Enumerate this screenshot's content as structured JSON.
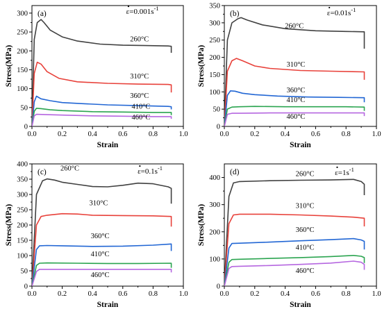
{
  "chart_data": [
    {
      "type": "line",
      "panel_label": "(a)",
      "strain_rate": "ε=0.001s",
      "strain_rate_unit": "-1",
      "xlabel": "Strain",
      "ylabel": "Stress(MPa)",
      "xlim": [
        0,
        1.0
      ],
      "ylim": [
        0,
        320
      ],
      "xticks": [
        "0.0",
        "0.2",
        "0.4",
        "0.6",
        "0.8",
        "1.0"
      ],
      "yticks": [
        "0",
        "50",
        "100",
        "150",
        "200",
        "250",
        "300"
      ],
      "series": [
        {
          "name": "260°C",
          "color": "#404040",
          "x": [
            0,
            0.015,
            0.035,
            0.06,
            0.08,
            0.12,
            0.2,
            0.3,
            0.45,
            0.6,
            0.75,
            0.9,
            0.92,
            0.92
          ],
          "y": [
            0,
            230,
            275,
            283,
            275,
            255,
            237,
            226,
            218,
            215,
            214,
            213,
            212,
            195
          ]
        },
        {
          "name": "310°C",
          "color": "#e8413a",
          "x": [
            0,
            0.015,
            0.035,
            0.06,
            0.1,
            0.18,
            0.3,
            0.5,
            0.7,
            0.9,
            0.92,
            0.92
          ],
          "y": [
            0,
            140,
            170,
            165,
            145,
            127,
            118,
            114,
            112,
            111,
            110,
            90
          ]
        },
        {
          "name": "360°C",
          "color": "#2166d4",
          "x": [
            0,
            0.015,
            0.03,
            0.06,
            0.12,
            0.2,
            0.35,
            0.5,
            0.7,
            0.9,
            0.92,
            0.92
          ],
          "y": [
            0,
            65,
            80,
            73,
            68,
            63,
            60,
            57,
            55,
            53,
            52,
            45
          ]
        },
        {
          "name": "410°C",
          "color": "#2aa44f",
          "x": [
            0,
            0.015,
            0.03,
            0.06,
            0.12,
            0.2,
            0.4,
            0.6,
            0.8,
            0.92,
            0.92
          ],
          "y": [
            0,
            40,
            48,
            47,
            44,
            42,
            39,
            38,
            37,
            37,
            30
          ]
        },
        {
          "name": "460°C",
          "color": "#b566e0",
          "x": [
            0,
            0.015,
            0.03,
            0.1,
            0.2,
            0.4,
            0.6,
            0.8,
            0.92,
            0.92
          ],
          "y": [
            0,
            28,
            32,
            31,
            30,
            28,
            27,
            26,
            26,
            20
          ]
        }
      ],
      "labels": [
        {
          "text": "260°C",
          "x": 0.71,
          "y": 225
        },
        {
          "text": "310°C",
          "x": 0.71,
          "y": 127
        },
        {
          "text": "360°C",
          "x": 0.71,
          "y": 75
        },
        {
          "text": "410°C",
          "x": 0.72,
          "y": 47
        },
        {
          "text": "460°C",
          "x": 0.72,
          "y": 18
        }
      ]
    },
    {
      "type": "line",
      "panel_label": "(b)",
      "strain_rate": "ε=0.01s",
      "strain_rate_unit": "-1",
      "xlabel": "Strain",
      "ylabel": "Stress(MPa)",
      "xlim": [
        0,
        1.0
      ],
      "ylim": [
        0,
        350
      ],
      "xticks": [
        "0.0",
        "0.2",
        "0.4",
        "0.6",
        "0.8",
        "1.0"
      ],
      "yticks": [
        "0",
        "50",
        "100",
        "150",
        "200",
        "250",
        "300",
        "350"
      ],
      "series": [
        {
          "name": "260°C",
          "color": "#404040",
          "x": [
            0,
            0.02,
            0.05,
            0.09,
            0.11,
            0.15,
            0.25,
            0.4,
            0.6,
            0.8,
            0.92,
            0.92
          ],
          "y": [
            0,
            250,
            300,
            312,
            315,
            308,
            294,
            283,
            277,
            275,
            274,
            225
          ]
        },
        {
          "name": "310°C",
          "color": "#e8413a",
          "x": [
            0,
            0.02,
            0.05,
            0.08,
            0.12,
            0.2,
            0.3,
            0.5,
            0.7,
            0.92,
            0.92
          ],
          "y": [
            0,
            160,
            190,
            197,
            190,
            175,
            168,
            162,
            160,
            158,
            135
          ]
        },
        {
          "name": "360°C",
          "color": "#2166d4",
          "x": [
            0,
            0.02,
            0.04,
            0.07,
            0.12,
            0.2,
            0.35,
            0.55,
            0.75,
            0.92,
            0.92
          ],
          "y": [
            0,
            90,
            103,
            102,
            96,
            92,
            88,
            85,
            84,
            83,
            70
          ]
        },
        {
          "name": "410°C",
          "color": "#2aa44f",
          "x": [
            0,
            0.02,
            0.05,
            0.1,
            0.2,
            0.4,
            0.6,
            0.8,
            0.92,
            0.92
          ],
          "y": [
            0,
            50,
            56,
            57,
            58,
            57,
            57,
            57,
            56,
            45
          ]
        },
        {
          "name": "460°C",
          "color": "#b566e0",
          "x": [
            0,
            0.02,
            0.05,
            0.1,
            0.3,
            0.5,
            0.7,
            0.92,
            0.92
          ],
          "y": [
            0,
            35,
            38,
            38,
            39,
            39,
            39,
            39,
            30
          ]
        }
      ],
      "labels": [
        {
          "text": "260°C",
          "x": 0.46,
          "y": 285
        },
        {
          "text": "310°C",
          "x": 0.47,
          "y": 173
        },
        {
          "text": "360°C",
          "x": 0.47,
          "y": 99
        },
        {
          "text": "410°C",
          "x": 0.47,
          "y": 70
        },
        {
          "text": "460°C",
          "x": 0.47,
          "y": 22
        }
      ]
    },
    {
      "type": "line",
      "panel_label": "(c)",
      "strain_rate": "ε=0.1s",
      "strain_rate_unit": "-1",
      "xlabel": "Strain",
      "ylabel": "Stress(MPa)",
      "xlim": [
        0,
        1.0
      ],
      "ylim": [
        0,
        400
      ],
      "xticks": [
        "0.0",
        "0.2",
        "0.4",
        "0.6",
        "0.8",
        "1.0"
      ],
      "yticks": [
        "0",
        "50",
        "100",
        "150",
        "200",
        "250",
        "300",
        "350",
        "400"
      ],
      "series": [
        {
          "name": "260°C",
          "color": "#404040",
          "x": [
            0,
            0.03,
            0.07,
            0.1,
            0.15,
            0.2,
            0.3,
            0.4,
            0.5,
            0.6,
            0.7,
            0.8,
            0.9,
            0.92,
            0.92
          ],
          "y": [
            0,
            300,
            345,
            351,
            347,
            340,
            333,
            326,
            325,
            330,
            337,
            335,
            325,
            320,
            270
          ]
        },
        {
          "name": "310°C",
          "color": "#e8413a",
          "x": [
            0,
            0.03,
            0.06,
            0.1,
            0.2,
            0.3,
            0.4,
            0.6,
            0.8,
            0.92,
            0.92
          ],
          "y": [
            0,
            200,
            228,
            232,
            237,
            236,
            232,
            231,
            230,
            228,
            195
          ]
        },
        {
          "name": "360°C",
          "color": "#2166d4",
          "x": [
            0,
            0.03,
            0.05,
            0.1,
            0.2,
            0.4,
            0.6,
            0.8,
            0.92,
            0.92
          ],
          "y": [
            0,
            120,
            132,
            133,
            132,
            130,
            131,
            134,
            138,
            115
          ]
        },
        {
          "name": "410°C",
          "color": "#2aa44f",
          "x": [
            0,
            0.03,
            0.05,
            0.1,
            0.3,
            0.5,
            0.7,
            0.92,
            0.92
          ],
          "y": [
            0,
            68,
            75,
            76,
            75,
            74,
            74,
            75,
            60
          ]
        },
        {
          "name": "460°C",
          "color": "#b566e0",
          "x": [
            0,
            0.03,
            0.05,
            0.1,
            0.3,
            0.5,
            0.7,
            0.92,
            0.92
          ],
          "y": [
            0,
            48,
            55,
            55,
            55,
            55,
            55,
            55,
            45
          ]
        }
      ],
      "labels": [
        {
          "text": "260°C",
          "x": 0.25,
          "y": 378
        },
        {
          "text": "310°C",
          "x": 0.44,
          "y": 265
        },
        {
          "text": "360°C",
          "x": 0.45,
          "y": 157
        },
        {
          "text": "410°C",
          "x": 0.45,
          "y": 98
        },
        {
          "text": "460°C",
          "x": 0.45,
          "y": 30
        }
      ]
    },
    {
      "type": "line",
      "panel_label": "(d)",
      "strain_rate": "ε=1s",
      "strain_rate_unit": "-1",
      "xlabel": "Strain",
      "ylabel": "Stress(MPa)",
      "xlim": [
        0,
        1.0
      ],
      "ylim": [
        0,
        450
      ],
      "xticks": [
        "0.0",
        "0.2",
        "0.4",
        "0.6",
        "0.8",
        "1.0"
      ],
      "yticks": [
        "0",
        "100",
        "200",
        "300",
        "400"
      ],
      "series": [
        {
          "name": "260°C",
          "color": "#404040",
          "x": [
            0,
            0.03,
            0.06,
            0.1,
            0.3,
            0.5,
            0.7,
            0.85,
            0.9,
            0.92,
            0.92
          ],
          "y": [
            0,
            330,
            380,
            385,
            388,
            390,
            391,
            393,
            385,
            375,
            335
          ]
        },
        {
          "name": "310°C",
          "color": "#e8413a",
          "x": [
            0,
            0.03,
            0.06,
            0.1,
            0.3,
            0.5,
            0.7,
            0.85,
            0.92,
            0.92
          ],
          "y": [
            0,
            230,
            262,
            265,
            265,
            262,
            258,
            254,
            250,
            220
          ]
        },
        {
          "name": "360°C",
          "color": "#2166d4",
          "x": [
            0,
            0.03,
            0.05,
            0.1,
            0.3,
            0.5,
            0.7,
            0.85,
            0.9,
            0.92,
            0.92
          ],
          "y": [
            0,
            140,
            157,
            158,
            162,
            167,
            171,
            175,
            170,
            165,
            135
          ]
        },
        {
          "name": "410°C",
          "color": "#2aa44f",
          "x": [
            0,
            0.03,
            0.05,
            0.1,
            0.3,
            0.5,
            0.7,
            0.85,
            0.9,
            0.92,
            0.92
          ],
          "y": [
            0,
            88,
            98,
            99,
            102,
            105,
            109,
            113,
            110,
            105,
            85
          ]
        },
        {
          "name": "460°C",
          "color": "#b566e0",
          "x": [
            0,
            0.03,
            0.05,
            0.1,
            0.3,
            0.5,
            0.7,
            0.85,
            0.9,
            0.92,
            0.92
          ],
          "y": [
            0,
            65,
            72,
            73,
            76,
            80,
            85,
            92,
            88,
            80,
            60
          ]
        }
      ],
      "labels": [
        {
          "text": "260°C",
          "x": 0.53,
          "y": 405
        },
        {
          "text": "310°C",
          "x": 0.53,
          "y": 288
        },
        {
          "text": "360°C",
          "x": 0.53,
          "y": 199
        },
        {
          "text": "410°C",
          "x": 0.53,
          "y": 134
        },
        {
          "text": "460°C",
          "x": 0.53,
          "y": 48
        }
      ]
    }
  ]
}
